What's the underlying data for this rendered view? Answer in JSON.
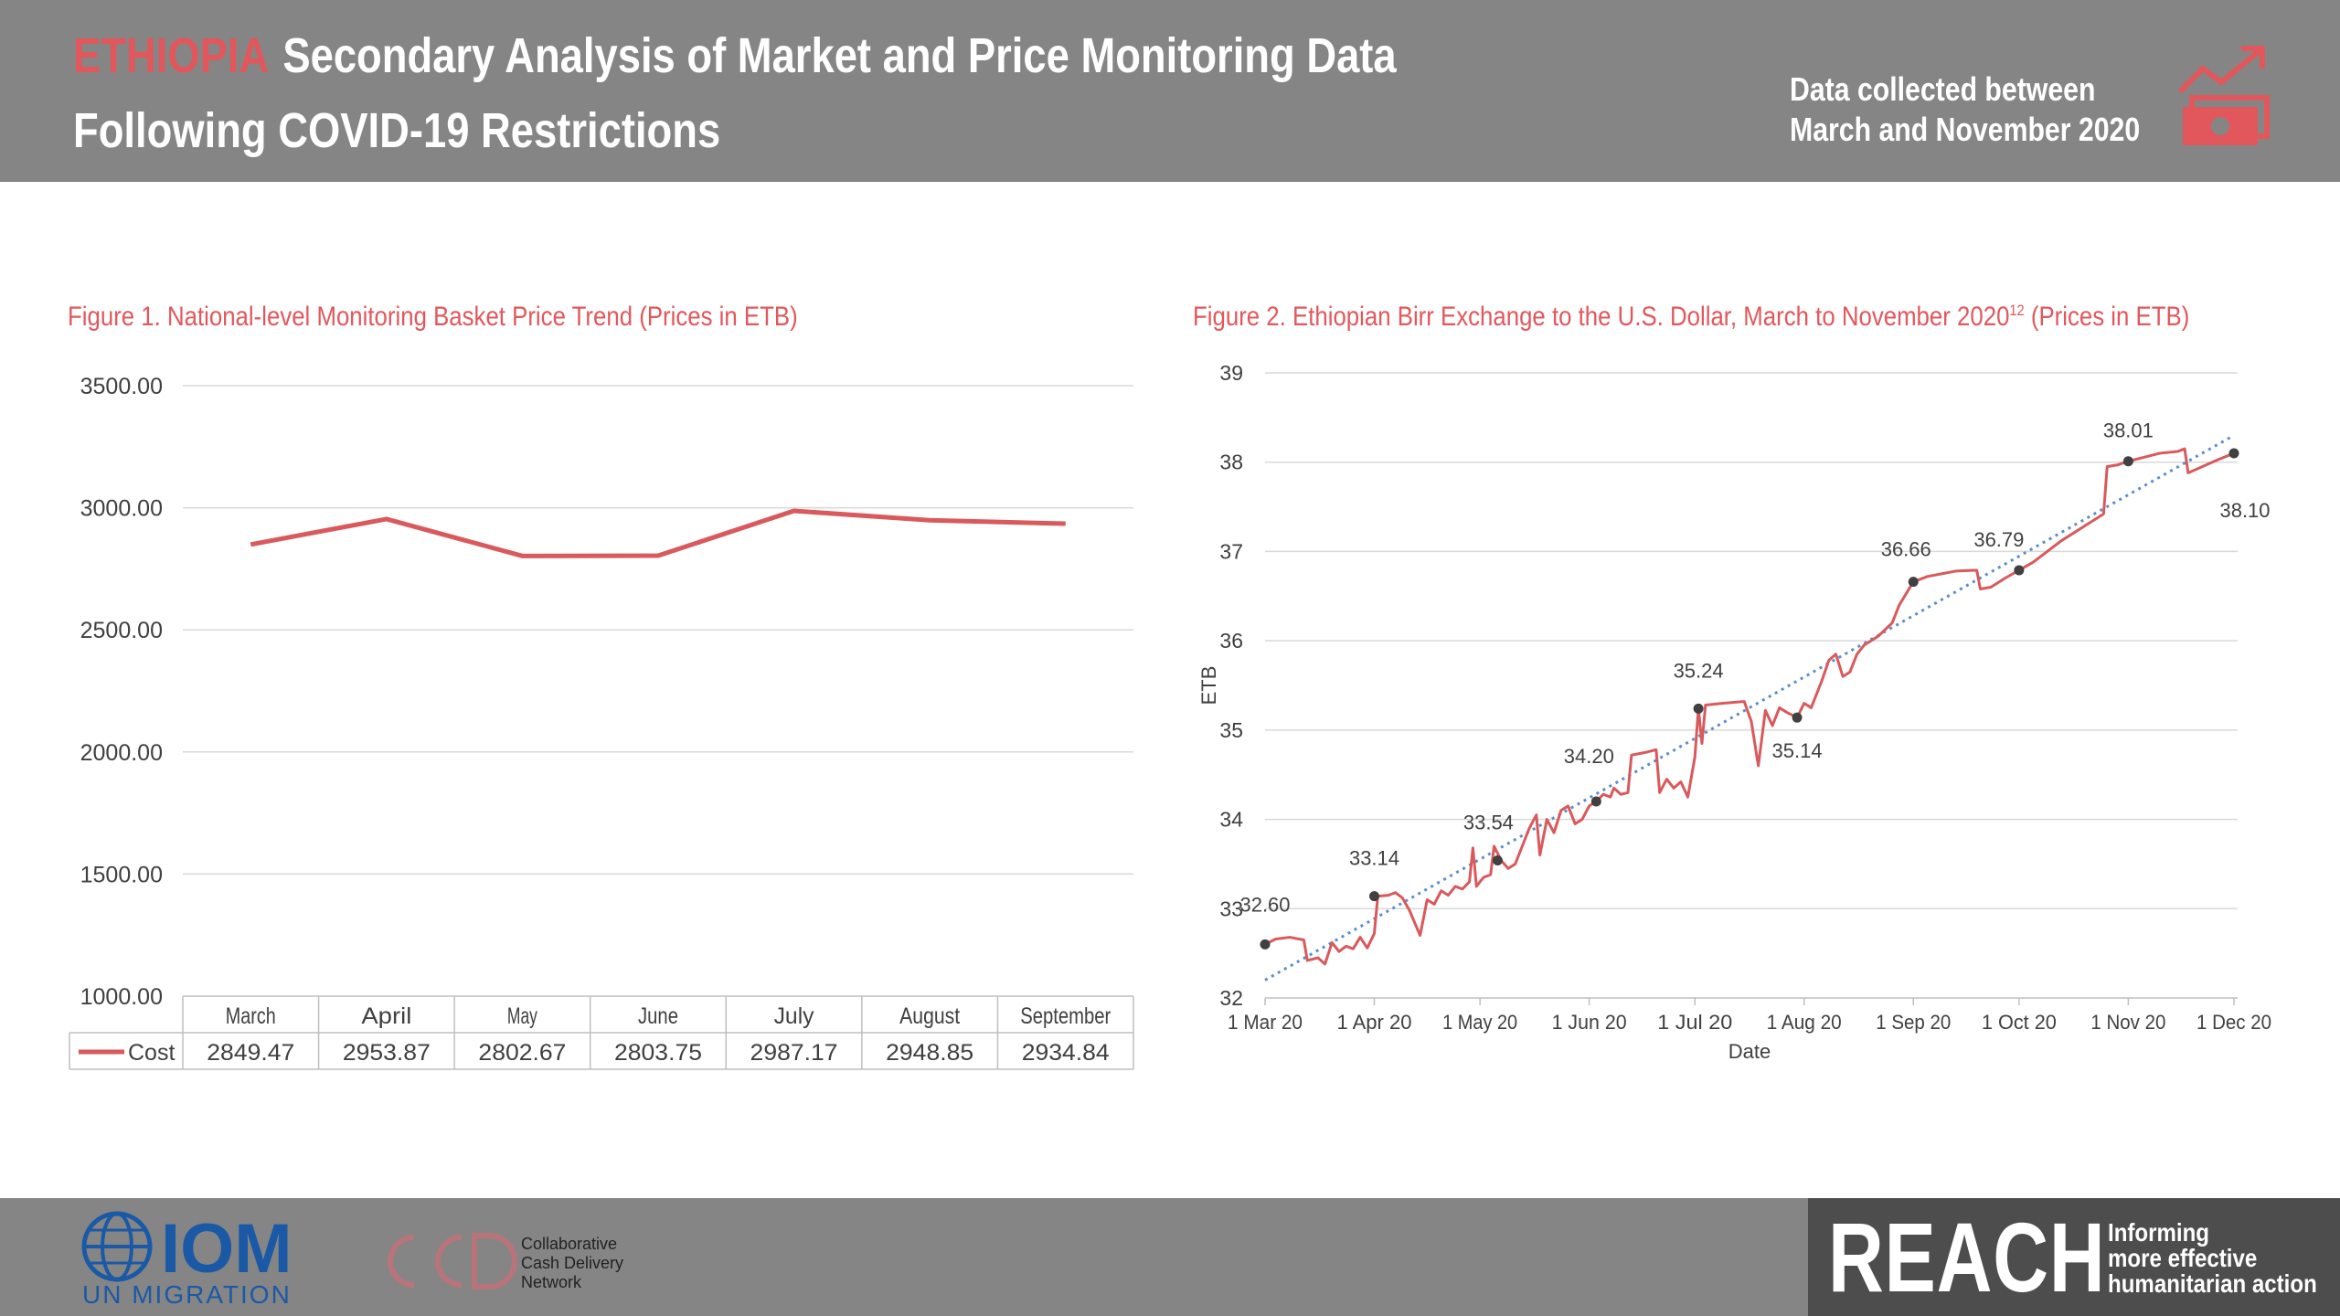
{
  "header": {
    "country": "ETHIOPIA",
    "title_line1": "Secondary Analysis of Market and Price Monitoring Data",
    "title_line2": "Following COVID-19 Restrictions",
    "collected_line1": "Data collected between",
    "collected_line2": "March and November 2020",
    "icon": "price-trend-money-icon",
    "accent_color": "#e2575b",
    "band_color": "#858585"
  },
  "footer": {
    "iom_name": "IOM",
    "iom_sub": "UN MIGRATION",
    "ccd_lines": [
      "Collaborative",
      "Cash Delivery",
      "Network"
    ],
    "reach_name": "REACH",
    "reach_tagline": [
      "Informing",
      "more effective",
      "humanitarian action"
    ]
  },
  "chart_data": [
    {
      "type": "line",
      "title": "Figure 1. National-level Monitoring Basket Price Trend (Prices in ETB)",
      "categories": [
        "March",
        "April",
        "May",
        "June",
        "July",
        "August",
        "September"
      ],
      "series": [
        {
          "name": "Cost",
          "values": [
            2849.47,
            2953.87,
            2802.67,
            2803.75,
            2987.17,
            2948.85,
            2934.84
          ],
          "color": "#d9595c"
        }
      ],
      "value_labels": [
        "2849.47",
        "2953.87",
        "2802.67",
        "2803.75",
        "2987.17",
        "2948.85",
        "2934.84"
      ],
      "ylim": [
        1000,
        3500
      ],
      "yticks": [
        "1000.00",
        "1500.00",
        "2000.00",
        "2500.00",
        "3000.00",
        "3500.00"
      ],
      "grid": true,
      "data_table": true
    },
    {
      "type": "line",
      "title": "Figure 2. Ethiopian Birr Exchange to the U.S. Dollar, March to November 2020",
      "title_sup": "12",
      "title_suffix": "(Prices in ETB)",
      "xlabel": "Date",
      "ylabel": "ETB",
      "ylim": [
        32,
        39
      ],
      "yticks": [
        "32",
        "33",
        "34",
        "35",
        "36",
        "37",
        "38",
        "39"
      ],
      "xticks": [
        "1 Mar 20",
        "1 Apr 20",
        "1 May 20",
        "1 Jun 20",
        "1 Jul 20",
        "1 Aug 20",
        "1 Sep 20",
        "1 Oct 20",
        "1 Nov 20",
        "1 Dec 20"
      ],
      "xticks_dates": [
        "2020-03-01",
        "2020-04-01",
        "2020-05-01",
        "2020-06-01",
        "2020-07-01",
        "2020-08-01",
        "2020-09-01",
        "2020-10-01",
        "2020-11-01",
        "2020-12-01"
      ],
      "xlim": [
        "2020-03-01",
        "2020-12-01"
      ],
      "grid": true,
      "line_color": "#d9595c",
      "trend_color": "#5b8fc9",
      "series": [
        {
          "points": [
            [
              "2020-03-01",
              32.6
            ],
            [
              "2020-03-04",
              32.66
            ],
            [
              "2020-03-08",
              32.68
            ],
            [
              "2020-03-12",
              32.65
            ],
            [
              "2020-03-13",
              32.42
            ],
            [
              "2020-03-16",
              32.45
            ],
            [
              "2020-03-18",
              32.38
            ],
            [
              "2020-03-20",
              32.62
            ],
            [
              "2020-03-22",
              32.52
            ],
            [
              "2020-03-24",
              32.58
            ],
            [
              "2020-03-26",
              32.55
            ],
            [
              "2020-03-28",
              32.68
            ],
            [
              "2020-03-30",
              32.56
            ],
            [
              "2020-04-01",
              32.72
            ],
            [
              "2020-04-02",
              33.14
            ],
            [
              "2020-04-05",
              33.15
            ],
            [
              "2020-04-07",
              33.18
            ],
            [
              "2020-04-09",
              33.12
            ],
            [
              "2020-04-11",
              32.98
            ],
            [
              "2020-04-14",
              32.7
            ],
            [
              "2020-04-16",
              33.1
            ],
            [
              "2020-04-18",
              33.05
            ],
            [
              "2020-04-20",
              33.2
            ],
            [
              "2020-04-22",
              33.15
            ],
            [
              "2020-04-24",
              33.25
            ],
            [
              "2020-04-26",
              33.22
            ],
            [
              "2020-04-28",
              33.3
            ],
            [
              "2020-04-29",
              33.68
            ],
            [
              "2020-04-30",
              33.25
            ],
            [
              "2020-05-02",
              33.35
            ],
            [
              "2020-05-04",
              33.38
            ],
            [
              "2020-05-05",
              33.7
            ],
            [
              "2020-05-07",
              33.54
            ],
            [
              "2020-05-09",
              33.45
            ],
            [
              "2020-05-11",
              33.5
            ],
            [
              "2020-05-13",
              33.7
            ],
            [
              "2020-05-15",
              33.9
            ],
            [
              "2020-05-17",
              34.05
            ],
            [
              "2020-05-18",
              33.6
            ],
            [
              "2020-05-20",
              34.0
            ],
            [
              "2020-05-22",
              33.85
            ],
            [
              "2020-05-24",
              34.1
            ],
            [
              "2020-05-26",
              34.15
            ],
            [
              "2020-05-28",
              33.95
            ],
            [
              "2020-05-30",
              34.0
            ],
            [
              "2020-06-01",
              34.15
            ],
            [
              "2020-06-03",
              34.2
            ],
            [
              "2020-06-05",
              34.28
            ],
            [
              "2020-06-07",
              34.25
            ],
            [
              "2020-06-08",
              34.35
            ],
            [
              "2020-06-10",
              34.28
            ],
            [
              "2020-06-12",
              34.3
            ],
            [
              "2020-06-13",
              34.72
            ],
            [
              "2020-06-17",
              34.75
            ],
            [
              "2020-06-20",
              34.78
            ],
            [
              "2020-06-21",
              34.3
            ],
            [
              "2020-06-23",
              34.45
            ],
            [
              "2020-06-25",
              34.35
            ],
            [
              "2020-06-27",
              34.42
            ],
            [
              "2020-06-29",
              34.25
            ],
            [
              "2020-07-01",
              34.7
            ],
            [
              "2020-07-02",
              35.24
            ],
            [
              "2020-07-03",
              34.85
            ],
            [
              "2020-07-04",
              35.28
            ],
            [
              "2020-07-09",
              35.3
            ],
            [
              "2020-07-15",
              35.32
            ],
            [
              "2020-07-17",
              35.1
            ],
            [
              "2020-07-19",
              34.6
            ],
            [
              "2020-07-21",
              35.22
            ],
            [
              "2020-07-23",
              35.05
            ],
            [
              "2020-07-25",
              35.25
            ],
            [
              "2020-07-27",
              35.2
            ],
            [
              "2020-07-30",
              35.14
            ],
            [
              "2020-08-01",
              35.3
            ],
            [
              "2020-08-03",
              35.25
            ],
            [
              "2020-08-06",
              35.55
            ],
            [
              "2020-08-08",
              35.78
            ],
            [
              "2020-08-10",
              35.85
            ],
            [
              "2020-08-12",
              35.6
            ],
            [
              "2020-08-14",
              35.65
            ],
            [
              "2020-08-16",
              35.85
            ],
            [
              "2020-08-18",
              35.95
            ],
            [
              "2020-08-22",
              36.05
            ],
            [
              "2020-08-26",
              36.2
            ],
            [
              "2020-08-28",
              36.4
            ],
            [
              "2020-09-01",
              36.66
            ],
            [
              "2020-09-05",
              36.72
            ],
            [
              "2020-09-09",
              36.75
            ],
            [
              "2020-09-13",
              36.78
            ],
            [
              "2020-09-19",
              36.79
            ],
            [
              "2020-09-20",
              36.58
            ],
            [
              "2020-09-23",
              36.6
            ],
            [
              "2020-09-27",
              36.7
            ],
            [
              "2020-10-01",
              36.79
            ],
            [
              "2020-10-05",
              36.88
            ],
            [
              "2020-10-09",
              37.0
            ],
            [
              "2020-10-13",
              37.12
            ],
            [
              "2020-10-17",
              37.22
            ],
            [
              "2020-10-21",
              37.32
            ],
            [
              "2020-10-25",
              37.42
            ],
            [
              "2020-10-26",
              37.95
            ],
            [
              "2020-10-29",
              37.97
            ],
            [
              "2020-11-01",
              38.01
            ],
            [
              "2020-11-05",
              38.05
            ],
            [
              "2020-11-10",
              38.1
            ],
            [
              "2020-11-15",
              38.12
            ],
            [
              "2020-11-17",
              38.15
            ],
            [
              "2020-11-18",
              37.88
            ],
            [
              "2020-11-22",
              37.95
            ],
            [
              "2020-11-26",
              38.02
            ],
            [
              "2020-12-01",
              38.1
            ]
          ]
        }
      ],
      "labeled_points": [
        {
          "date": "2020-03-01",
          "value": 32.6,
          "label": "32.60"
        },
        {
          "date": "2020-04-01",
          "value": 33.14,
          "label": "33.14"
        },
        {
          "date": "2020-05-06",
          "value": 33.54,
          "label": "33.54"
        },
        {
          "date": "2020-06-03",
          "value": 34.2,
          "label": "34.20"
        },
        {
          "date": "2020-07-02",
          "value": 35.24,
          "label": "35.24"
        },
        {
          "date": "2020-07-30",
          "value": 35.14,
          "label": "35.14"
        },
        {
          "date": "2020-09-01",
          "value": 36.66,
          "label": "36.66"
        },
        {
          "date": "2020-10-01",
          "value": 36.79,
          "label": "36.79"
        },
        {
          "date": "2020-11-01",
          "value": 38.01,
          "label": "38.01"
        },
        {
          "date": "2020-12-01",
          "value": 38.1,
          "label": "38.10"
        }
      ],
      "trendline": {
        "start": [
          "2020-03-01",
          32.2
        ],
        "end": [
          "2020-12-01",
          38.3
        ]
      }
    }
  ]
}
